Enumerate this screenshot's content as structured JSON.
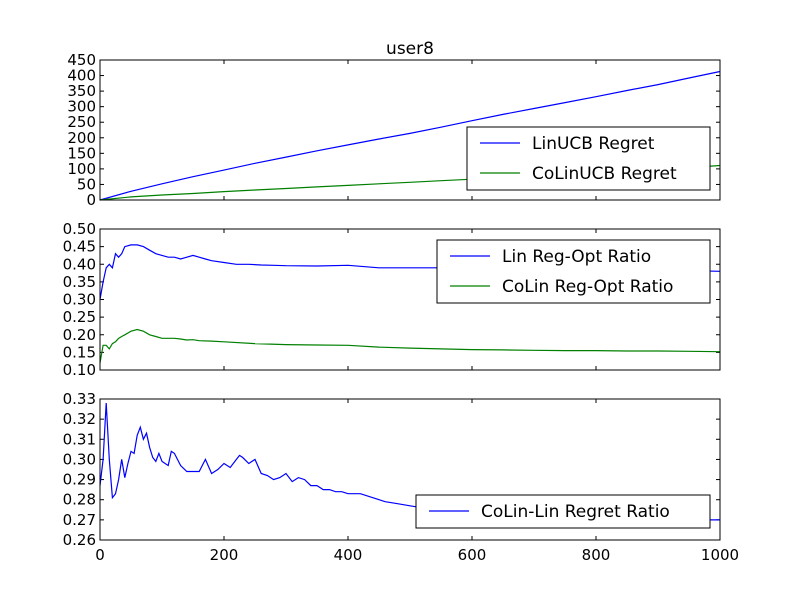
{
  "figure_title": "user8",
  "chart_data": [
    {
      "type": "line",
      "title": "user8",
      "xlabel": "",
      "ylabel": "",
      "xlim": [
        0,
        1000
      ],
      "ylim": [
        0,
        450
      ],
      "yticks": [
        "0",
        "50",
        "100",
        "150",
        "200",
        "250",
        "300",
        "350",
        "400",
        "450"
      ],
      "xticks": [],
      "legend_position": "lower-right",
      "series": [
        {
          "name": "LinUCB Regret",
          "color": "#0000ff",
          "x": [
            0,
            50,
            100,
            150,
            200,
            250,
            300,
            350,
            400,
            450,
            500,
            550,
            600,
            650,
            700,
            750,
            800,
            850,
            900,
            950,
            1000
          ],
          "y": [
            0,
            28,
            52,
            75,
            96,
            118,
            138,
            158,
            177,
            196,
            214,
            234,
            255,
            275,
            294,
            313,
            332,
            352,
            371,
            392,
            413
          ]
        },
        {
          "name": "CoLinUCB Regret",
          "color": "#008000",
          "x": [
            0,
            50,
            100,
            150,
            200,
            250,
            300,
            350,
            400,
            450,
            500,
            550,
            600,
            650,
            700,
            750,
            800,
            850,
            900,
            950,
            1000
          ],
          "y": [
            0,
            10,
            16,
            21,
            27,
            32,
            37,
            42,
            47,
            52,
            57,
            62,
            67,
            72,
            77,
            82,
            87,
            92,
            98,
            104,
            111
          ]
        }
      ]
    },
    {
      "type": "line",
      "title": "",
      "xlabel": "",
      "ylabel": "",
      "xlim": [
        0,
        1000
      ],
      "ylim": [
        0.1,
        0.5
      ],
      "yticks": [
        "0.10",
        "0.15",
        "0.20",
        "0.25",
        "0.30",
        "0.35",
        "0.40",
        "0.45",
        "0.50"
      ],
      "xticks": [],
      "legend_position": "upper-right",
      "series": [
        {
          "name": "Lin Reg-Opt Ratio",
          "color": "#0000ff",
          "x": [
            0,
            5,
            10,
            15,
            20,
            25,
            30,
            35,
            40,
            50,
            60,
            70,
            80,
            90,
            100,
            110,
            120,
            130,
            140,
            150,
            160,
            170,
            180,
            200,
            220,
            240,
            260,
            280,
            300,
            350,
            400,
            450,
            500,
            550,
            600,
            650,
            700,
            750,
            800,
            850,
            900,
            950,
            1000
          ],
          "y": [
            0.3,
            0.35,
            0.39,
            0.4,
            0.39,
            0.43,
            0.42,
            0.43,
            0.45,
            0.455,
            0.455,
            0.45,
            0.44,
            0.43,
            0.425,
            0.42,
            0.42,
            0.415,
            0.42,
            0.425,
            0.42,
            0.415,
            0.41,
            0.405,
            0.4,
            0.4,
            0.398,
            0.397,
            0.396,
            0.395,
            0.397,
            0.39,
            0.39,
            0.39,
            0.39,
            0.388,
            0.387,
            0.386,
            0.385,
            0.384,
            0.383,
            0.382,
            0.38
          ]
        },
        {
          "name": "CoLin Reg-Opt Ratio",
          "color": "#008000",
          "x": [
            0,
            5,
            10,
            15,
            20,
            25,
            30,
            35,
            40,
            50,
            60,
            70,
            80,
            90,
            100,
            110,
            120,
            130,
            140,
            150,
            160,
            180,
            200,
            250,
            300,
            350,
            400,
            450,
            500,
            550,
            600,
            650,
            700,
            750,
            800,
            850,
            900,
            950,
            1000
          ],
          "y": [
            0.12,
            0.17,
            0.17,
            0.16,
            0.175,
            0.18,
            0.19,
            0.195,
            0.2,
            0.21,
            0.215,
            0.21,
            0.2,
            0.195,
            0.19,
            0.19,
            0.19,
            0.188,
            0.185,
            0.186,
            0.183,
            0.182,
            0.18,
            0.175,
            0.172,
            0.171,
            0.17,
            0.165,
            0.162,
            0.16,
            0.158,
            0.157,
            0.156,
            0.155,
            0.155,
            0.154,
            0.154,
            0.153,
            0.152
          ]
        }
      ]
    },
    {
      "type": "line",
      "title": "",
      "xlabel": "",
      "ylabel": "",
      "xlim": [
        0,
        1000
      ],
      "ylim": [
        0.26,
        0.33
      ],
      "yticks": [
        "0.26",
        "0.27",
        "0.28",
        "0.29",
        "0.30",
        "0.31",
        "0.32",
        "0.33"
      ],
      "xticks": [
        "0",
        "200",
        "400",
        "600",
        "800",
        "1000"
      ],
      "legend_position": "lower-right",
      "series": [
        {
          "name": "CoLin-Lin Regret Ratio",
          "color": "#0000ff",
          "x": [
            0,
            5,
            10,
            15,
            20,
            25,
            30,
            35,
            40,
            45,
            50,
            55,
            60,
            65,
            70,
            75,
            80,
            85,
            90,
            95,
            100,
            105,
            110,
            115,
            120,
            130,
            140,
            150,
            160,
            170,
            180,
            190,
            200,
            210,
            220,
            225,
            230,
            240,
            250,
            260,
            270,
            280,
            290,
            300,
            310,
            320,
            330,
            340,
            350,
            360,
            370,
            380,
            390,
            400,
            420,
            440,
            460,
            480,
            500,
            520,
            540,
            560,
            600,
            650,
            700,
            750,
            800,
            850,
            900,
            950,
            1000
          ],
          "y": [
            0.287,
            0.3,
            0.328,
            0.3,
            0.281,
            0.283,
            0.29,
            0.3,
            0.291,
            0.298,
            0.304,
            0.303,
            0.312,
            0.316,
            0.31,
            0.313,
            0.306,
            0.301,
            0.299,
            0.303,
            0.299,
            0.298,
            0.297,
            0.304,
            0.303,
            0.297,
            0.294,
            0.294,
            0.294,
            0.3,
            0.293,
            0.295,
            0.298,
            0.296,
            0.3,
            0.302,
            0.301,
            0.298,
            0.3,
            0.293,
            0.292,
            0.29,
            0.291,
            0.293,
            0.289,
            0.291,
            0.29,
            0.287,
            0.287,
            0.285,
            0.285,
            0.284,
            0.284,
            0.283,
            0.283,
            0.281,
            0.279,
            0.278,
            0.277,
            0.276,
            0.276,
            0.275,
            0.274,
            0.273,
            0.273,
            0.272,
            0.272,
            0.271,
            0.271,
            0.27,
            0.27
          ]
        }
      ]
    }
  ]
}
